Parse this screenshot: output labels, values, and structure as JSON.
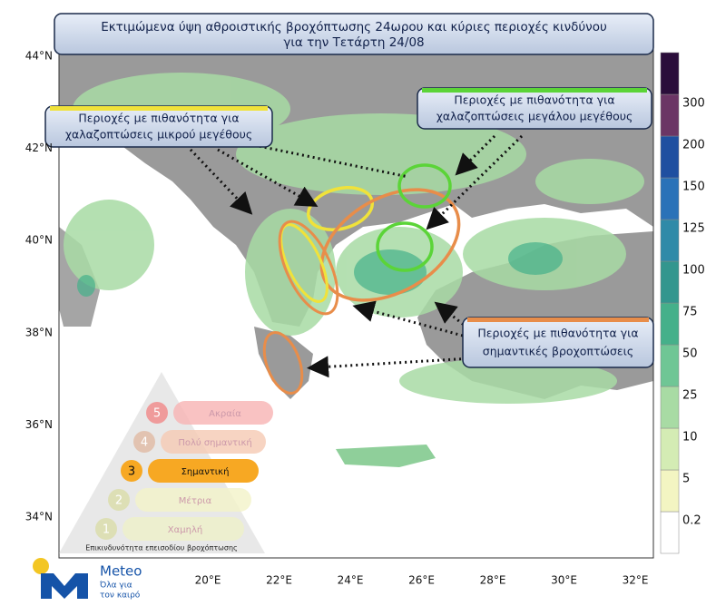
{
  "title": {
    "line1": "Εκτιμώμενα ύψη αθροιστικής βροχόπτωσης 24ωρου και κύριες περιοχές κινδύνου",
    "line2": "για την Τετάρτη 24/08"
  },
  "annotations": [
    {
      "line1": "Περιοχές με πιθανότητα για",
      "line2": "χαλαζοπτώσεις μικρού μεγέθους"
    },
    {
      "line1": "Περιοχές με πιθανότητα για",
      "line2": "χαλαζοπτώσεις μεγάλου μεγέθους"
    },
    {
      "line1": "Περιοχές με πιθανότητα για",
      "line2": "σημαντικές βροχοπτώσεις"
    }
  ],
  "lat_labels": [
    "44°N",
    "42°N",
    "40°N",
    "38°N",
    "36°N",
    "34°N"
  ],
  "lon_labels": [
    "20°E",
    "22°E",
    "24°E",
    "26°E",
    "28°E",
    "30°E",
    "32°E"
  ],
  "colorbar": {
    "levels": [
      0.2,
      5,
      10,
      25,
      50,
      75,
      100,
      125,
      150,
      200,
      300
    ],
    "colors": [
      "#ffffff",
      "#f3f5c2",
      "#d4ecb4",
      "#a8dba4",
      "#6fc695",
      "#45b08a",
      "#33968e",
      "#2f8aa8",
      "#2a72b8",
      "#1f4fa0",
      "#6b3565",
      "#2a0d3a"
    ]
  },
  "risk_scale": {
    "levels": [
      {
        "number": "5",
        "label": "Ακραία"
      },
      {
        "number": "4",
        "label": "Πολύ σημαντική"
      },
      {
        "number": "3",
        "label": "Σημαντική"
      },
      {
        "number": "2",
        "label": "Μέτρια"
      },
      {
        "number": "1",
        "label": "Χαμηλή"
      }
    ],
    "caption": "Επικινδυνότητα επεισοδίου βροχόπτωσης"
  },
  "logo": {
    "name": "Meteo",
    "slogan_line1": "Όλα για",
    "slogan_line2": "τον καιρό"
  }
}
